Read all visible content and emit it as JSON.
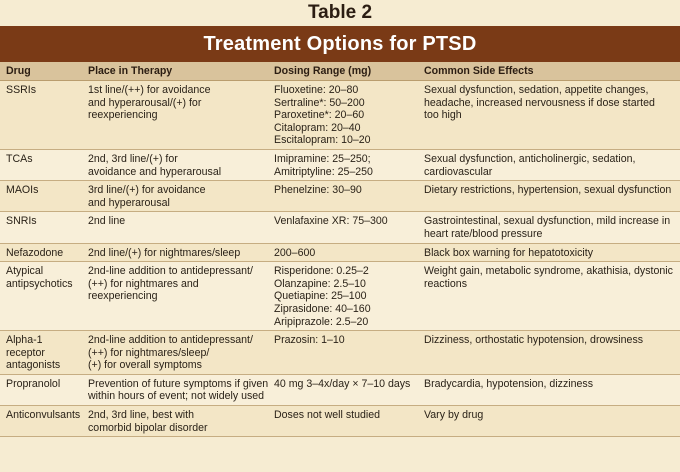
{
  "table_label": "Table 2",
  "title": "Treatment Options for PTSD",
  "headers": [
    "Drug",
    "Place in Therapy",
    "Dosing Range (mg)",
    "Common Side Effects"
  ],
  "rows": [
    {
      "drug": [
        "SSRIs"
      ],
      "place": [
        "1st line/(++) for avoidance",
        "and hyperarousal/(+) for",
        "reexperiencing"
      ],
      "dosing": [
        "Fluoxetine: 20–80",
        "Sertraline*: 50–200",
        "Paroxetine*: 20–60",
        "Citalopram: 20–40",
        "Escitalopram: 10–20"
      ],
      "effects": [
        "Sexual dysfunction, sedation, appetite changes,",
        "headache, increased nervousness if dose started",
        "too high"
      ]
    },
    {
      "drug": [
        "TCAs"
      ],
      "place": [
        "2nd, 3rd line/(+) for",
        "avoidance and hyperarousal"
      ],
      "dosing": [
        "Imipramine: 25–250;",
        "Amitriptyline: 25–250"
      ],
      "effects": [
        "Sexual dysfunction, anticholinergic, sedation,",
        "cardiovascular"
      ]
    },
    {
      "drug": [
        "MAOIs"
      ],
      "place": [
        "3rd line/(+) for avoidance",
        "and hyperarousal"
      ],
      "dosing": [
        "Phenelzine: 30–90"
      ],
      "effects": [
        "Dietary restrictions, hypertension, sexual dysfunction"
      ]
    },
    {
      "drug": [
        "SNRIs"
      ],
      "place": [
        "2nd line"
      ],
      "dosing": [
        "Venlafaxine XR: 75–300"
      ],
      "effects": [
        "Gastrointestinal, sexual dysfunction, mild increase in",
        "heart rate/blood pressure"
      ]
    },
    {
      "drug": [
        "Nefazodone"
      ],
      "place": [
        "2nd line/(+) for nightmares/sleep"
      ],
      "dosing": [
        "200–600"
      ],
      "effects": [
        "Black box warning for hepatotoxicity"
      ]
    },
    {
      "drug": [
        "Atypical",
        "antipsychotics"
      ],
      "place": [
        "2nd-line addition to antidepressant/",
        "(++) for nightmares and",
        "reexperiencing"
      ],
      "dosing": [
        "Risperidone: 0.25–2",
        "Olanzapine: 2.5–10",
        "Quetiapine: 25–100",
        "Ziprasidone: 40–160",
        "Aripiprazole: 2.5–20"
      ],
      "effects": [
        "Weight gain, metabolic syndrome, akathisia, dystonic",
        "reactions"
      ]
    },
    {
      "drug": [
        "Alpha-1",
        "receptor",
        "antagonists"
      ],
      "place": [
        "2nd-line addition to antidepressant/",
        "(++) for nightmares/sleep/",
        "(+) for overall symptoms"
      ],
      "dosing": [
        "Prazosin: 1–10"
      ],
      "effects": [
        "Dizziness, orthostatic hypotension, drowsiness"
      ]
    },
    {
      "drug": [
        "Propranolol"
      ],
      "place": [
        "Prevention of future symptoms if given",
        "within hours of event; not widely used"
      ],
      "dosing": [
        "40 mg 3–4x/day × 7–10 days"
      ],
      "effects": [
        "Bradycardia, hypotension, dizziness"
      ]
    },
    {
      "drug": [
        "Anticonvulsants"
      ],
      "place": [
        "2nd, 3rd line, best with",
        "comorbid bipolar disorder"
      ],
      "dosing": [
        "Doses not well studied"
      ],
      "effects": [
        "Vary by drug"
      ]
    }
  ]
}
